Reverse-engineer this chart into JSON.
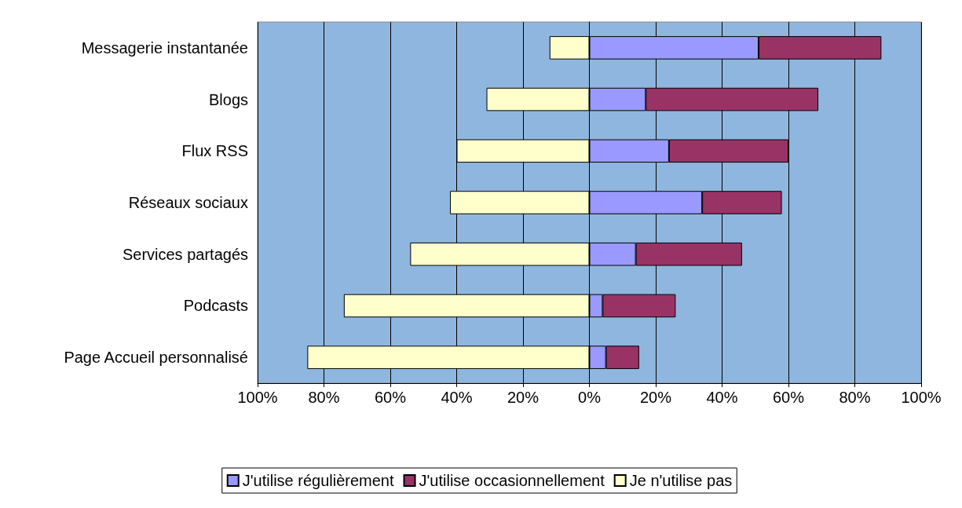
{
  "chart_data": {
    "type": "bar",
    "orientation": "horizontal",
    "stacked": true,
    "categories": [
      "Messagerie instantanée",
      "Blogs",
      "Flux RSS",
      "Réseaux sociaux",
      "Services partagés",
      "Podcasts",
      "Page Accueil personnalisé"
    ],
    "series": [
      {
        "name": "J'utilise régulièrement",
        "color": "#9999ff",
        "values": [
          51,
          17,
          24,
          34,
          14,
          4,
          5
        ]
      },
      {
        "name": "J'utilise occasionnellement",
        "color": "#993366",
        "values": [
          37,
          52,
          36,
          24,
          32,
          22,
          10
        ]
      },
      {
        "name": "Je n'utilise pas",
        "color": "#ffffcc",
        "values": [
          -12,
          -31,
          -40,
          -42,
          -54,
          -74,
          -85
        ]
      }
    ],
    "xlim": [
      -100,
      100
    ],
    "xticks": [
      {
        "value": -100,
        "label": "100%"
      },
      {
        "value": -80,
        "label": "80%"
      },
      {
        "value": -60,
        "label": "60%"
      },
      {
        "value": -40,
        "label": "40%"
      },
      {
        "value": -20,
        "label": "20%"
      },
      {
        "value": 0,
        "label": "0%"
      },
      {
        "value": 20,
        "label": "20%"
      },
      {
        "value": 40,
        "label": "40%"
      },
      {
        "value": 60,
        "label": "60%"
      },
      {
        "value": 80,
        "label": "80%"
      },
      {
        "value": 100,
        "label": "100%"
      }
    ],
    "grid": "x",
    "legend": "bottom"
  }
}
